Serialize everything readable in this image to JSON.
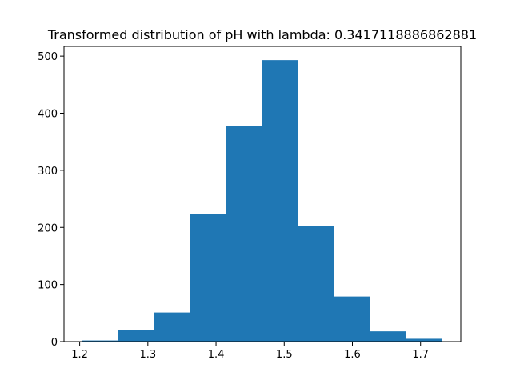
{
  "chart_data": {
    "type": "bar",
    "title": "Transformed distribution of pH with lambda: 0.3417118886862881",
    "xlabel": "",
    "ylabel": "",
    "bin_edges": [
      1.203,
      1.2559,
      1.3088,
      1.3617,
      1.4146,
      1.4675,
      1.5204,
      1.5733,
      1.6262,
      1.6791,
      1.732
    ],
    "values": [
      2,
      21,
      51,
      223,
      377,
      493,
      203,
      79,
      18,
      5
    ],
    "xlim": [
      1.177,
      1.759
    ],
    "ylim": [
      0,
      517
    ],
    "x_ticks": [
      1.2,
      1.3,
      1.4,
      1.5,
      1.6,
      1.7
    ],
    "x_tick_labels": [
      "1.2",
      "1.3",
      "1.4",
      "1.5",
      "1.6",
      "1.7"
    ],
    "y_ticks": [
      0,
      100,
      200,
      300,
      400,
      500
    ],
    "y_tick_labels": [
      "0",
      "100",
      "200",
      "300",
      "400",
      "500"
    ],
    "bar_color": "#1f77b4",
    "grid": false,
    "legend": "none"
  }
}
